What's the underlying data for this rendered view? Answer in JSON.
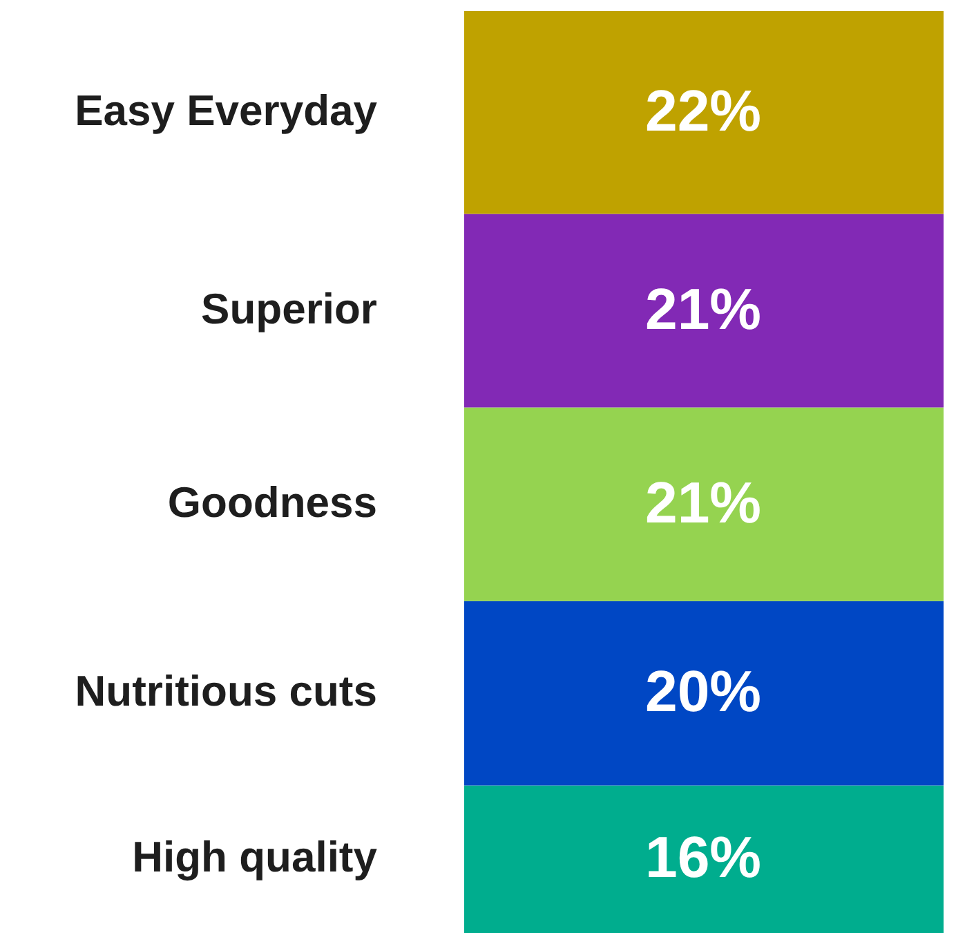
{
  "chart_data": {
    "type": "bar",
    "stacked": true,
    "categories": [
      null
    ],
    "series": [
      {
        "name": "High quality",
        "color": "#00ad8e",
        "values": [
          16
        ],
        "value_labels": [
          "16%"
        ]
      },
      {
        "name": "Nutritious cuts",
        "color": "#0047c4",
        "values": [
          20
        ],
        "value_labels": [
          "20%"
        ]
      },
      {
        "name": "Goodness",
        "color": "#95d350",
        "values": [
          21
        ],
        "value_labels": [
          "21%"
        ]
      },
      {
        "name": "Superior",
        "color": "#8229b5",
        "values": [
          21
        ],
        "value_labels": [
          "21%"
        ]
      },
      {
        "name": "Easy Everyday",
        "color": "#bfa200",
        "values": [
          22
        ],
        "value_labels": [
          "22%"
        ]
      }
    ]
  }
}
